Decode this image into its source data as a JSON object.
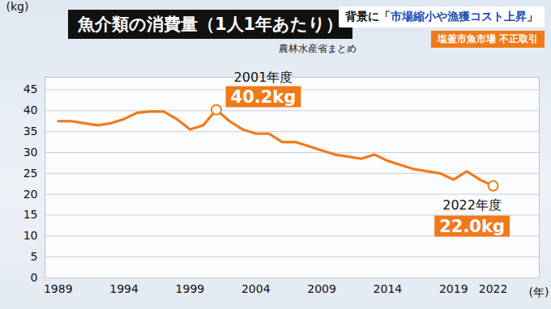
{
  "chart_data": {
    "type": "line",
    "title": "魚介類の消費量（1人1年あたり）",
    "subtitle": "農林水産省まとめ",
    "headline": "背景に「市場縮小や漁獲コスト上昇」",
    "tag": "塩釜市魚市場 不正取引",
    "x_label": "(年)",
    "y_label": "(kg)",
    "x": [
      1989,
      1990,
      1991,
      1992,
      1993,
      1994,
      1995,
      1996,
      1997,
      1998,
      1999,
      2000,
      2001,
      2002,
      2003,
      2004,
      2005,
      2006,
      2007,
      2008,
      2009,
      2010,
      2011,
      2012,
      2013,
      2014,
      2015,
      2016,
      2017,
      2018,
      2019,
      2020,
      2021,
      2022
    ],
    "values": [
      37.5,
      37.5,
      37,
      36.5,
      37,
      38,
      39.5,
      39.8,
      39.8,
      38,
      35.5,
      36.5,
      40.2,
      37.5,
      35.5,
      34.5,
      34.5,
      32.5,
      32.5,
      31.5,
      30.5,
      29.5,
      29,
      28.5,
      29.5,
      28,
      27,
      26,
      25.5,
      25,
      23.5,
      25.5,
      23.5,
      22.0
    ],
    "color": "#f07a1a",
    "xlim": [
      1988,
      2025.5
    ],
    "xticks": [
      1989,
      1994,
      1999,
      2004,
      2009,
      2014,
      2019,
      2022
    ],
    "ylim": [
      0,
      48
    ],
    "yticks": [
      0,
      5,
      10,
      15,
      20,
      25,
      30,
      35,
      40,
      45
    ],
    "grid": true,
    "annotations": [
      {
        "x": 2001,
        "y": 40.2,
        "label": "2001年度",
        "value_label": "40.2kg"
      },
      {
        "x": 2022,
        "y": 22.0,
        "label": "2022年度",
        "value_label": "22.0kg"
      }
    ]
  }
}
